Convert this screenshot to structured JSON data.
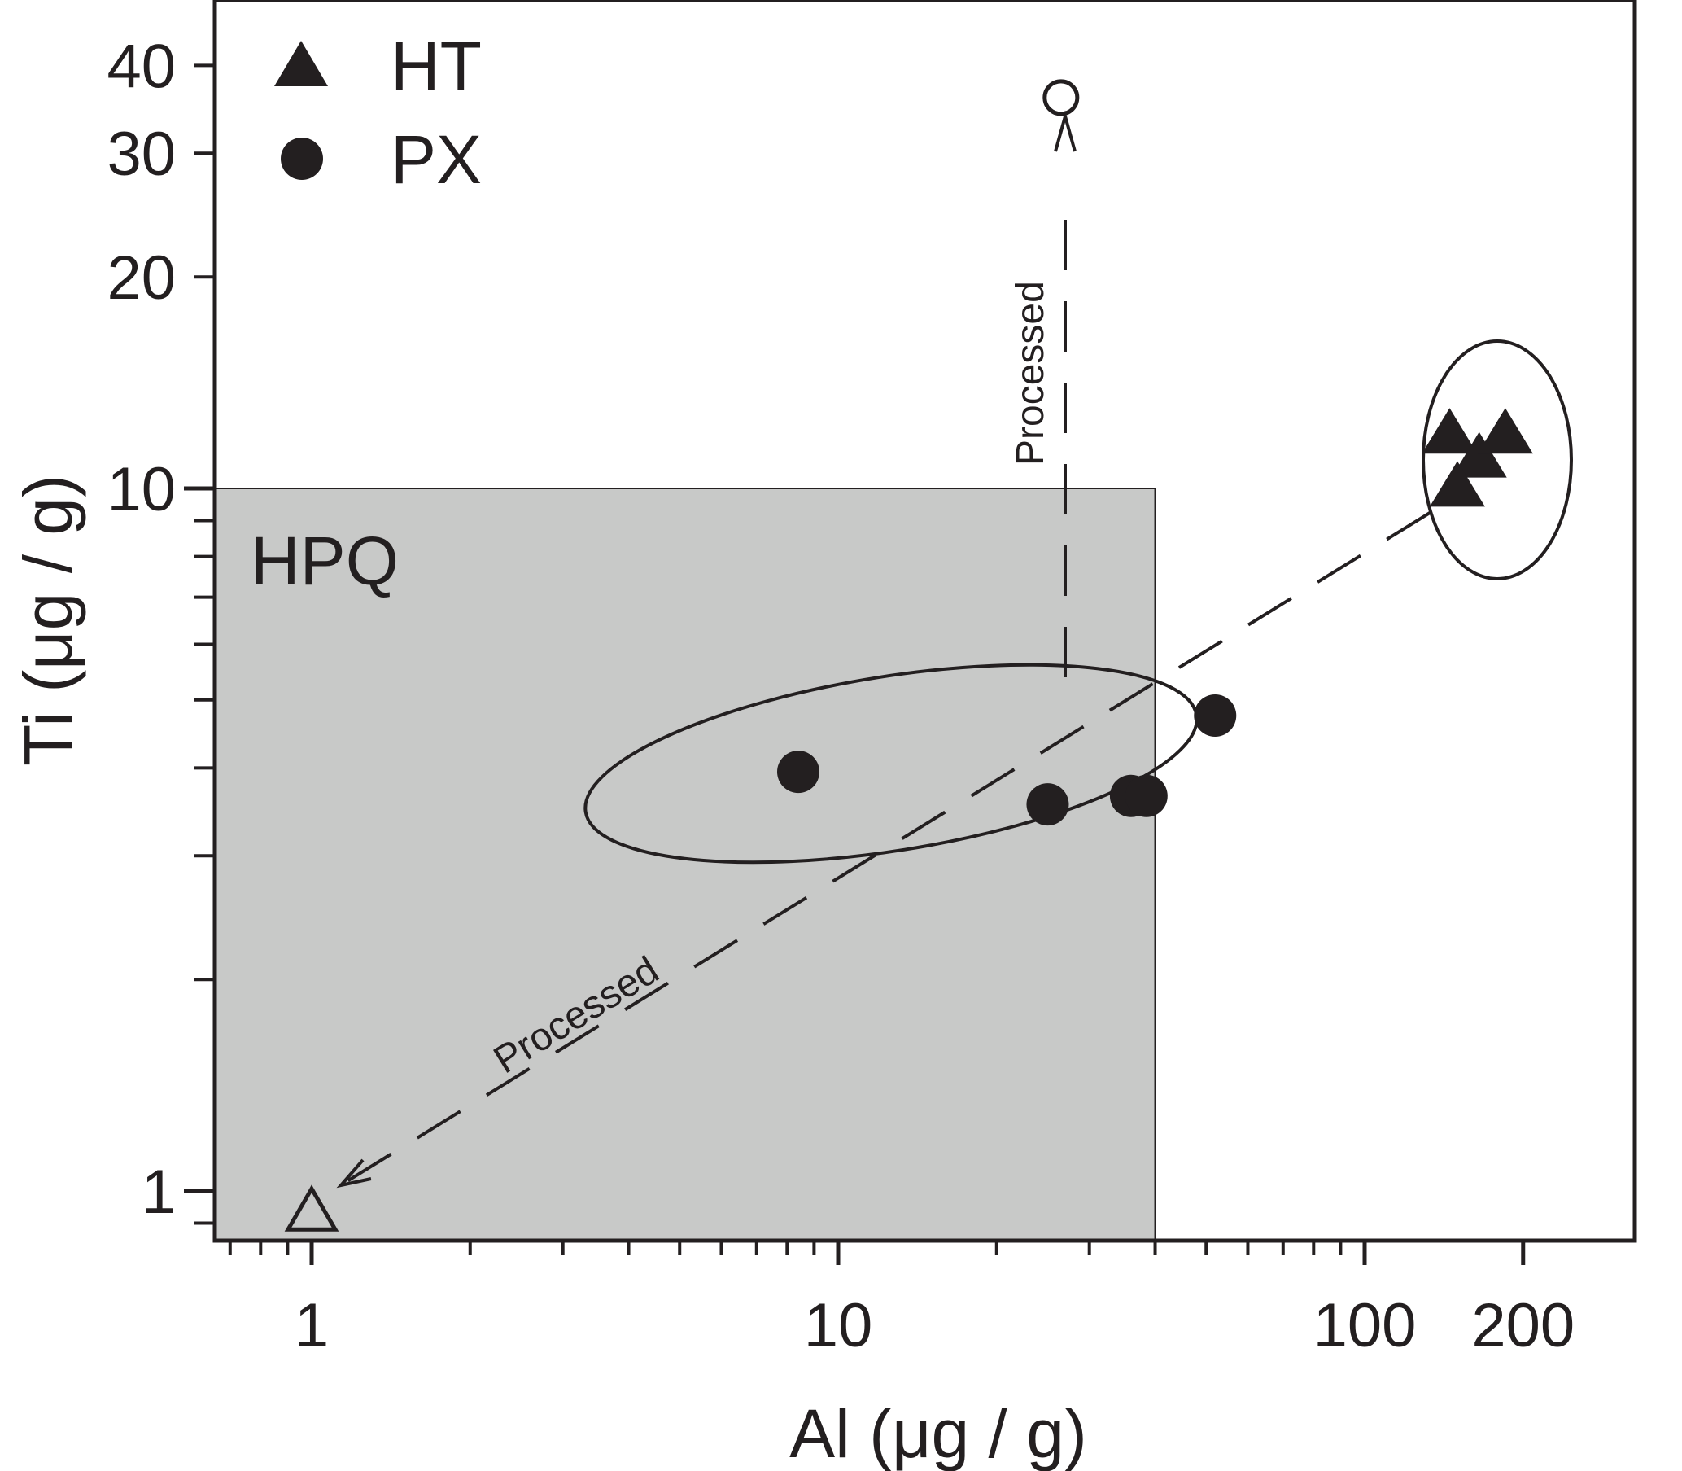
{
  "chart_data": {
    "type": "scatter",
    "xlabel": "Al (μg / g)",
    "ylabel": "Ti (μg / g)",
    "x_scale": "log",
    "y_scale": "log",
    "xlim": [
      0.64,
      200
    ],
    "ylim": [
      0.84,
      48
    ],
    "x_ticks": [
      {
        "value": 1,
        "label": "1"
      },
      {
        "value": 10,
        "label": "10"
      },
      {
        "value": 100,
        "label": "100"
      },
      {
        "value": 200,
        "label": "200"
      }
    ],
    "y_ticks": [
      {
        "value": 1,
        "label": "1"
      },
      {
        "value": 10,
        "label": "10"
      },
      {
        "value": 20,
        "label": "20"
      },
      {
        "value": 30,
        "label": "30"
      },
      {
        "value": 40,
        "label": "40"
      }
    ],
    "grid": false,
    "legend": {
      "position": "top-left",
      "entries": [
        {
          "label": "HT",
          "marker": "triangle-filled"
        },
        {
          "label": "PX",
          "marker": "circle-filled"
        }
      ]
    },
    "series": [
      {
        "name": "HT",
        "marker": "triangle-filled",
        "points": [
          [
            145,
            11.9
          ],
          [
            165,
            11.0
          ],
          [
            185,
            11.9
          ],
          [
            150,
            10.0
          ]
        ]
      },
      {
        "name": "PX",
        "marker": "circle-filled",
        "points": [
          [
            8.4,
            3.95
          ],
          [
            25,
            3.55
          ],
          [
            36,
            3.65
          ],
          [
            38.5,
            3.65
          ],
          [
            52,
            4.75
          ]
        ]
      },
      {
        "name": "",
        "marker": "triangle-open",
        "points": [
          [
            1,
            0.93
          ]
        ]
      },
      {
        "name": "",
        "marker": "circle-open",
        "points": [
          [
            26.5,
            36
          ]
        ]
      }
    ],
    "regions": [
      {
        "label": "HPQ",
        "x_range": [
          0.64,
          40
        ],
        "y_range": [
          0.84,
          10
        ],
        "color": "#c8c9c8"
      }
    ],
    "ellipses": [
      {
        "center": [
          23,
          3.9
        ],
        "group": "PX"
      },
      {
        "center": [
          165,
          10.8
        ],
        "group": "HT"
      }
    ],
    "annotations": [
      {
        "text": "Processed",
        "from": [
          140,
          9.4
        ],
        "to": [
          1.1,
          0.98
        ],
        "style": "dashed-arrow"
      },
      {
        "text": "Processed",
        "from": [
          26.5,
          5.3
        ],
        "to": [
          26.5,
          31
        ],
        "style": "dashed-arrow"
      }
    ],
    "colors": {
      "ink": "#231f20",
      "region": "#c8c9c8",
      "background": "#ffffff"
    }
  }
}
